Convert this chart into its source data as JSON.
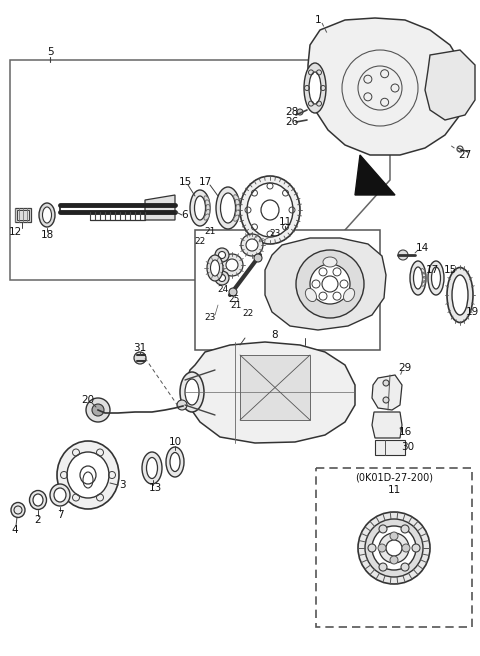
{
  "bg_color": "#ffffff",
  "line_color": "#404040",
  "fig_width": 4.8,
  "fig_height": 6.56,
  "dpi": 100,
  "label_fs": 7.5,
  "small_fs": 6.5
}
